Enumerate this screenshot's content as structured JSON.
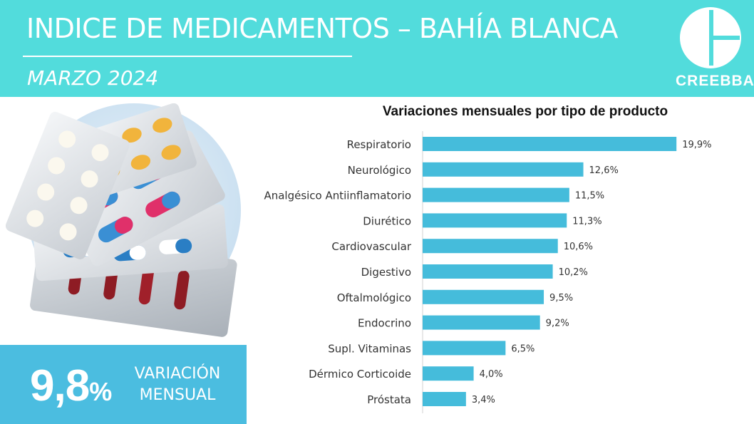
{
  "header": {
    "title": "INDICE DE MEDICAMENTOS – BAHÍA BLANCA",
    "subtitle": "MARZO 2024",
    "logo_text": "CREEBBA"
  },
  "kpi": {
    "value": "9,8",
    "unit": "%",
    "label_line1": "VARIACIÓN",
    "label_line2": "MENSUAL"
  },
  "colors": {
    "header_bg": "#52dcdc",
    "kpi_bg": "#4bbde0",
    "bar": "#45bcdb"
  },
  "chart_data": {
    "type": "bar",
    "orientation": "horizontal",
    "title": "Variaciones mensuales por tipo de producto",
    "categories": [
      "Respiratorio",
      "Neurológico",
      "Analgésico Antiinflamatorio",
      "Diurético",
      "Cardiovascular",
      "Digestivo",
      "Oftalmológico",
      "Endocrino",
      "Supl. Vitaminas",
      "Dérmico Corticoide",
      "Próstata"
    ],
    "values": [
      19.9,
      12.6,
      11.5,
      11.3,
      10.6,
      10.2,
      9.5,
      9.2,
      6.5,
      4.0,
      3.4
    ],
    "data_labels": [
      "19,9%",
      "12,6%",
      "11,5%",
      "11,3%",
      "10,6%",
      "10,2%",
      "9,5%",
      "9,2%",
      "6,5%",
      "4,0%",
      "3,4%"
    ],
    "xlim": [
      0,
      20
    ],
    "grid": false,
    "legend": "none"
  }
}
